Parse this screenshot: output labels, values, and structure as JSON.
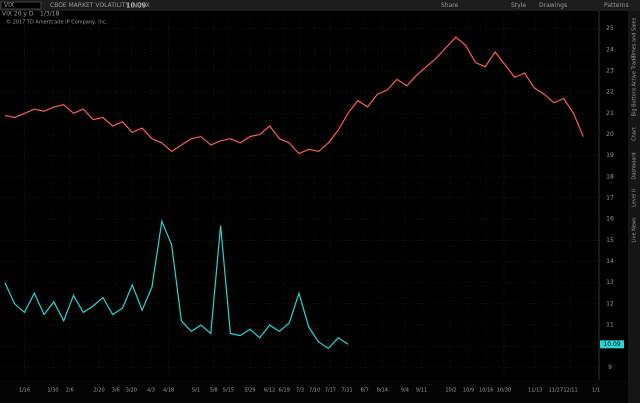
{
  "toolbar": {
    "symbol": "VIX",
    "description": "CBOE MARKET VOLATILITY INDEX",
    "buttons": [
      "Share",
      "Style",
      "Drawings",
      "Patterns"
    ]
  },
  "chart_header": {
    "study": "VIX 20 y D",
    "date": "1/3/18",
    "copyright": "© 2017 TD Ameritrade IP Company, Inc."
  },
  "side_tabs": [
    "Times and Sales",
    "Active Trader",
    "Big Buttons",
    "Chart",
    "Dashboard",
    "Level II",
    "Live News"
  ],
  "chart_data": {
    "type": "line",
    "grid": true,
    "xlim": [
      -0.5,
      60.5
    ],
    "xticks": [
      {
        "value": 2.0,
        "label": "1/16"
      },
      {
        "value": 4.9,
        "label": "1/30"
      },
      {
        "value": 6.6,
        "label": "2/6"
      },
      {
        "value": 9.6,
        "label": "2/20"
      },
      {
        "value": 11.3,
        "label": "3/6"
      },
      {
        "value": 12.9,
        "label": "3/20"
      },
      {
        "value": 14.9,
        "label": "4/3"
      },
      {
        "value": 16.7,
        "label": "4/18"
      },
      {
        "value": 19.5,
        "label": "5/1"
      },
      {
        "value": 21.3,
        "label": "5/8"
      },
      {
        "value": 22.8,
        "label": "5/15"
      },
      {
        "value": 25.0,
        "label": "5/29"
      },
      {
        "value": 27.0,
        "label": "6/12"
      },
      {
        "value": 28.5,
        "label": "6/19"
      },
      {
        "value": 30.1,
        "label": "7/3"
      },
      {
        "value": 31.6,
        "label": "7/10"
      },
      {
        "value": 33.2,
        "label": "7/17"
      },
      {
        "value": 34.9,
        "label": "7/31"
      },
      {
        "value": 36.7,
        "label": "8/7"
      },
      {
        "value": 38.5,
        "label": "8/14"
      },
      {
        "value": 40.8,
        "label": "9/4"
      },
      {
        "value": 42.5,
        "label": "9/11"
      },
      {
        "value": 45.5,
        "label": "10/2"
      },
      {
        "value": 47.3,
        "label": "10/9"
      },
      {
        "value": 49.1,
        "label": "10/16"
      },
      {
        "value": 50.9,
        "label": "10/30"
      },
      {
        "value": 54.1,
        "label": "11/13"
      },
      {
        "value": 56.2,
        "label": "11/27"
      },
      {
        "value": 57.7,
        "label": "12/11"
      },
      {
        "value": 60.3,
        "label": "1/1"
      }
    ],
    "ylim": [
      8.5,
      25.5
    ],
    "yticks": [
      9,
      10,
      11,
      12,
      13,
      14,
      15,
      16,
      17,
      18,
      19,
      20,
      21,
      22,
      23,
      24,
      25
    ],
    "series": [
      {
        "color": "#ff5b57",
        "values": [
          20.9,
          20.8,
          21.0,
          21.2,
          21.1,
          21.3,
          21.4,
          21.0,
          21.2,
          20.7,
          20.8,
          20.4,
          20.6,
          20.1,
          20.3,
          19.8,
          19.6,
          19.2,
          19.5,
          19.8,
          19.9,
          19.5,
          19.7,
          19.8,
          19.6,
          19.9,
          20.0,
          20.4,
          19.8,
          19.6,
          19.1,
          19.3,
          19.2,
          19.6,
          20.2,
          21.0,
          21.6,
          21.3,
          21.9,
          22.1,
          22.6,
          22.3,
          22.8,
          23.2,
          23.6,
          24.1,
          24.6,
          24.2,
          23.4,
          23.2,
          23.9,
          23.3,
          22.7,
          22.9,
          22.2,
          21.9,
          21.5,
          21.7,
          21.0,
          19.9
        ]
      },
      {
        "color": "#2ad4d4",
        "values": [
          13.0,
          12.0,
          11.6,
          12.5,
          11.5,
          12.1,
          11.2,
          12.4,
          11.6,
          11.9,
          12.3,
          11.5,
          11.8,
          12.9,
          11.7,
          12.8,
          15.9,
          14.8,
          11.2,
          10.7,
          11.0,
          10.6,
          15.7,
          10.6,
          10.5,
          10.8,
          10.4,
          11.0,
          10.7,
          11.1,
          12.5,
          10.9,
          10.2,
          9.9,
          10.4,
          10.09,
          null,
          null,
          null,
          null,
          null,
          null,
          null,
          null,
          null,
          null,
          null,
          null,
          null,
          null,
          null,
          null,
          null,
          null,
          null,
          null,
          null,
          null,
          null,
          null
        ]
      }
    ]
  }
}
